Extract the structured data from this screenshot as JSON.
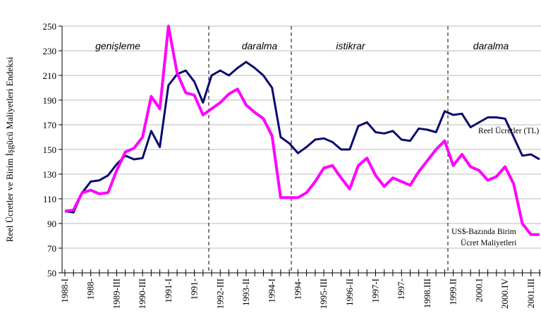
{
  "chart_data": {
    "type": "line",
    "y_label": "Reel Ücretler ve Birim İşgücü Maliyetleri Endeksi",
    "categories": [
      "1988-I",
      null,
      null,
      "1988-",
      null,
      null,
      "1989-III",
      null,
      null,
      "1990-III",
      null,
      null,
      "1991-I",
      null,
      null,
      "1991-",
      null,
      null,
      "1992-III",
      null,
      null,
      "1993-II",
      null,
      null,
      "1994-I",
      null,
      null,
      "1994-",
      null,
      null,
      "1995-III",
      null,
      null,
      "1996-II",
      null,
      null,
      "1997-I",
      null,
      null,
      "1997-",
      null,
      null,
      "1998.III",
      null,
      null,
      "1999.II",
      null,
      null,
      "2000.I",
      null,
      null,
      "2000.IV",
      null,
      null,
      "2001.III",
      null
    ],
    "series": [
      {
        "name": "Reel Ücretler (TL)",
        "color": "#0a0a6e",
        "values": [
          100,
          99,
          115,
          124,
          125,
          129,
          138,
          145,
          142,
          143,
          165,
          152,
          202,
          211,
          214,
          205,
          188,
          210,
          214,
          210,
          216,
          221,
          216,
          210,
          200,
          160,
          155,
          147,
          152,
          158,
          159,
          156,
          150,
          150,
          169,
          172,
          164,
          163,
          165,
          158,
          157,
          167,
          166,
          164,
          181,
          178,
          179,
          168,
          172,
          176,
          176,
          175,
          160,
          145,
          146,
          142
        ]
      },
      {
        "name": "US$-Bazında Birim Ücret Maliyetleri",
        "color": "#ff00ff",
        "values": [
          100,
          101,
          115,
          117,
          114,
          115,
          133,
          148,
          151,
          160,
          193,
          183,
          250,
          212,
          196,
          194,
          178,
          183,
          188,
          195,
          199,
          186,
          180,
          175,
          161,
          111,
          111,
          111,
          115,
          124,
          135,
          137,
          127,
          118,
          137,
          143,
          129,
          120,
          127,
          124,
          121,
          132,
          141,
          150,
          157,
          137,
          146,
          136,
          133,
          125,
          128,
          136,
          122,
          90,
          81,
          81
        ]
      }
    ],
    "ylim": [
      50,
      250
    ],
    "yticks": [
      50,
      70,
      90,
      110,
      130,
      150,
      170,
      190,
      210,
      230,
      250
    ],
    "grid": true,
    "periods": [
      "genişleme",
      "daralma",
      "istikrar",
      "daralma"
    ],
    "series_labels": [
      "Reel Ücretler (TL)",
      "US$-Bazında Birim",
      "Ücret Maliyetleri"
    ]
  }
}
